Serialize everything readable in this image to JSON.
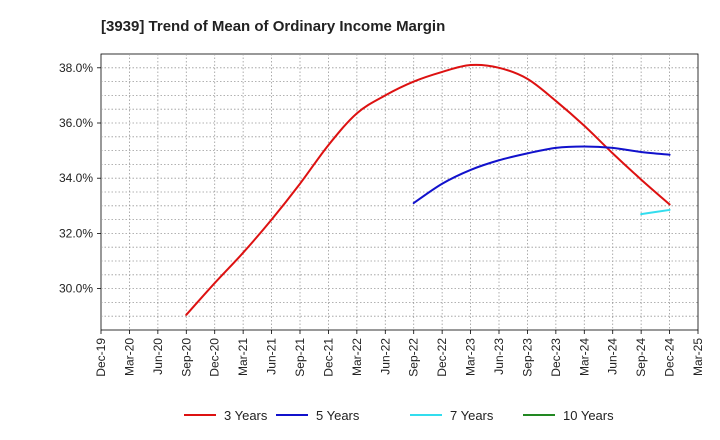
{
  "chart_data": {
    "type": "line",
    "title": "[3939]  Trend of Mean of Ordinary Income Margin",
    "xlabel": "",
    "ylabel": "",
    "x": [
      "Dec-19",
      "Mar-20",
      "Jun-20",
      "Sep-20",
      "Dec-20",
      "Mar-21",
      "Jun-21",
      "Sep-21",
      "Dec-21",
      "Mar-22",
      "Jun-22",
      "Sep-22",
      "Dec-22",
      "Mar-23",
      "Jun-23",
      "Sep-23",
      "Dec-23",
      "Mar-24",
      "Jun-24",
      "Sep-24",
      "Dec-24",
      "Mar-25"
    ],
    "ylim": [
      28.5,
      38.5
    ],
    "yticks": [
      30.0,
      32.0,
      34.0,
      36.0,
      38.0
    ],
    "ytick_labels": [
      "30.0%",
      "32.0%",
      "34.0%",
      "36.0%",
      "38.0%"
    ],
    "grid": true,
    "legend_position": "bottom",
    "series": [
      {
        "name": "3 Years",
        "color": "#dd1111",
        "values": [
          null,
          null,
          null,
          29.05,
          30.2,
          31.3,
          32.5,
          33.8,
          35.2,
          36.35,
          37.0,
          37.5,
          37.85,
          38.1,
          38.0,
          37.6,
          36.8,
          35.9,
          34.9,
          33.95,
          33.05,
          null
        ]
      },
      {
        "name": "5 Years",
        "color": "#1111cc",
        "values": [
          null,
          null,
          null,
          null,
          null,
          null,
          null,
          null,
          null,
          null,
          null,
          33.1,
          33.8,
          34.3,
          34.65,
          34.9,
          35.1,
          35.15,
          35.1,
          34.95,
          34.85,
          null
        ]
      },
      {
        "name": "7 Years",
        "color": "#33ddee",
        "values": [
          null,
          null,
          null,
          null,
          null,
          null,
          null,
          null,
          null,
          null,
          null,
          null,
          null,
          null,
          null,
          null,
          null,
          null,
          null,
          32.7,
          32.85,
          null
        ]
      },
      {
        "name": "10 Years",
        "color": "#228822",
        "values": [
          null,
          null,
          null,
          null,
          null,
          null,
          null,
          null,
          null,
          null,
          null,
          null,
          null,
          null,
          null,
          null,
          null,
          null,
          null,
          null,
          null,
          null
        ]
      }
    ]
  }
}
